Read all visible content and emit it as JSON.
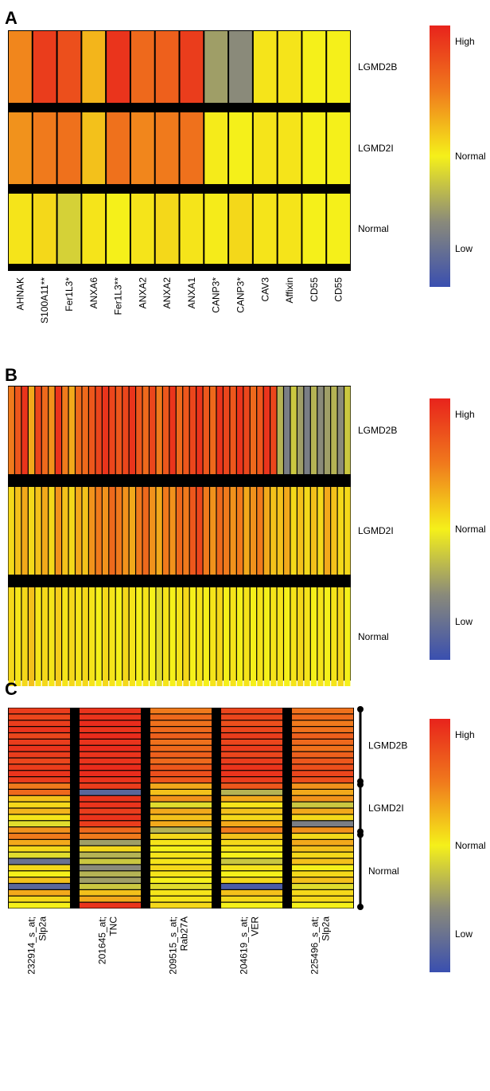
{
  "chart_data": [
    {
      "type": "heatmap",
      "panel_label": "A",
      "rows": [
        "LGMD2B",
        "LGMD2I",
        "Normal"
      ],
      "columns": [
        "AHNAK",
        "S100A11**",
        "Fer1L3*",
        "ANXA6",
        "Fer1L3**",
        "ANXA2",
        "ANXA2",
        "ANXA1",
        "CANP3*",
        "CANP3*",
        "CAV3",
        "Affixin",
        "CD55",
        "CD55"
      ],
      "values": [
        [
          0.45,
          0.85,
          0.75,
          0.25,
          0.9,
          0.6,
          0.65,
          0.85,
          -0.4,
          -0.5,
          0.05,
          0.05,
          0.0,
          0.0
        ],
        [
          0.4,
          0.5,
          0.55,
          0.2,
          0.55,
          0.45,
          0.5,
          0.55,
          0.02,
          0.0,
          0.05,
          0.05,
          0.0,
          0.0
        ],
        [
          0.05,
          0.1,
          -0.15,
          0.05,
          0.0,
          0.05,
          0.1,
          0.05,
          0.02,
          0.1,
          0.05,
          0.05,
          0.0,
          0.0
        ]
      ],
      "legend": {
        "high": "High",
        "normal": "Normal",
        "low": "Low"
      }
    },
    {
      "type": "heatmap",
      "panel_label": "B",
      "rows": [
        "LGMD2B",
        "LGMD2I",
        "Normal"
      ],
      "columns": [],
      "values": [
        [
          0.5,
          0.7,
          0.9,
          0.3,
          0.8,
          0.6,
          0.4,
          0.9,
          0.5,
          0.3,
          0.6,
          0.6,
          0.7,
          0.8,
          0.9,
          0.8,
          0.7,
          0.8,
          0.9,
          0.7,
          0.6,
          0.8,
          0.5,
          0.7,
          0.9,
          0.6,
          0.7,
          0.8,
          0.9,
          0.7,
          0.6,
          0.9,
          0.8,
          0.7,
          0.9,
          0.8,
          0.6,
          0.7,
          0.9,
          0.8,
          -0.3,
          -0.6,
          -0.2,
          -0.4,
          -0.6,
          -0.3,
          -0.5,
          -0.4,
          -0.3,
          -0.5,
          -0.2
        ],
        [
          0.1,
          0.2,
          0.3,
          0.1,
          0.2,
          0.3,
          0.1,
          0.4,
          0.2,
          0.1,
          0.3,
          0.2,
          0.4,
          0.5,
          0.4,
          0.6,
          0.5,
          0.4,
          0.3,
          0.5,
          0.6,
          0.4,
          0.3,
          0.5,
          0.4,
          0.6,
          0.5,
          0.7,
          0.8,
          0.5,
          0.4,
          0.6,
          0.5,
          0.4,
          0.5,
          0.3,
          0.4,
          0.5,
          0.3,
          0.2,
          0.2,
          0.3,
          0.1,
          0.2,
          0.1,
          0.2,
          0.1,
          0.3,
          0.2,
          0.1,
          0.1
        ],
        [
          0.1,
          0.05,
          0.1,
          0.2,
          0.05,
          0.1,
          0.05,
          0.15,
          0.05,
          0.1,
          0.05,
          0.1,
          0.05,
          0.0,
          0.1,
          0.05,
          0.0,
          0.1,
          0.05,
          0.0,
          0.05,
          0.0,
          -0.1,
          0.05,
          0.0,
          0.05,
          0.1,
          0.0,
          0.05,
          0.0,
          0.05,
          0.1,
          0.0,
          0.05,
          0.0,
          0.05,
          0.0,
          0.05,
          0.0,
          0.05,
          0.05,
          0.0,
          0.05,
          0.1,
          0.05,
          0.0,
          0.05,
          0.0,
          0.05,
          0.1,
          0.0
        ]
      ],
      "legend": {
        "high": "High",
        "normal": "Normal",
        "low": "Low"
      }
    },
    {
      "type": "heatmap",
      "panel_label": "C",
      "columns": [
        {
          "probe": "232914_s_at;",
          "gene": "Slp2a"
        },
        {
          "probe": "201645_at;",
          "gene": "TNC"
        },
        {
          "probe": "209515_s_at;",
          "gene": "Rab27A"
        },
        {
          "probe": "204619_s_at;",
          "gene": "VER"
        },
        {
          "probe": "225496_s_at;",
          "gene": "Slp2a"
        }
      ],
      "groups": [
        {
          "label": "LGMD2B",
          "rows": 12
        },
        {
          "label": "LGMD2I",
          "rows": 8
        },
        {
          "label": "Normal",
          "rows": 12
        }
      ],
      "values": [
        [
          0.85,
          0.9,
          0.5,
          0.8,
          0.55
        ],
        [
          0.8,
          0.9,
          0.6,
          0.8,
          0.6
        ],
        [
          0.85,
          0.95,
          0.55,
          0.75,
          0.5
        ],
        [
          0.9,
          0.9,
          0.6,
          0.8,
          0.55
        ],
        [
          0.8,
          0.95,
          0.65,
          0.85,
          0.65
        ],
        [
          0.85,
          0.9,
          0.55,
          0.8,
          0.6
        ],
        [
          0.9,
          0.95,
          0.6,
          0.85,
          0.55
        ],
        [
          0.85,
          0.9,
          0.65,
          0.8,
          0.65
        ],
        [
          0.8,
          0.9,
          0.6,
          0.85,
          0.7
        ],
        [
          0.85,
          0.95,
          0.7,
          0.9,
          0.75
        ],
        [
          0.9,
          0.95,
          0.75,
          0.9,
          0.8
        ],
        [
          0.85,
          0.9,
          0.7,
          0.85,
          0.75
        ],
        [
          0.5,
          0.85,
          0.3,
          0.7,
          0.4
        ],
        [
          0.6,
          -0.8,
          0.2,
          -0.3,
          0.3
        ],
        [
          0.2,
          0.9,
          0.4,
          0.3,
          0.4
        ],
        [
          0.1,
          0.9,
          -0.1,
          0.05,
          -0.2
        ],
        [
          0.25,
          0.85,
          0.3,
          0.2,
          0.3
        ],
        [
          0.05,
          0.9,
          0.2,
          0.1,
          0.1
        ],
        [
          -0.1,
          0.85,
          0.3,
          0.3,
          -0.6
        ],
        [
          0.4,
          0.6,
          -0.3,
          0.5,
          0.4
        ],
        [
          0.5,
          0.5,
          0.1,
          0.2,
          0.1
        ],
        [
          0.3,
          -0.4,
          0.05,
          0.1,
          0.3
        ],
        [
          0.1,
          0.1,
          0.0,
          0.05,
          0.2
        ],
        [
          -0.1,
          -0.3,
          0.05,
          0.0,
          0.1
        ],
        [
          -0.7,
          -0.2,
          0.05,
          -0.2,
          0.2
        ],
        [
          0.1,
          -0.5,
          0.1,
          0.05,
          0.0
        ],
        [
          0.0,
          -0.3,
          0.05,
          0.0,
          0.1
        ],
        [
          0.2,
          -0.4,
          0.0,
          0.1,
          0.2
        ],
        [
          -0.8,
          -0.2,
          -0.1,
          -0.9,
          -0.1
        ],
        [
          0.3,
          0.2,
          0.05,
          0.2,
          0.1
        ],
        [
          0.1,
          0.3,
          0.05,
          0.1,
          0.1
        ],
        [
          0.0,
          0.9,
          0.1,
          0.0,
          0.0
        ]
      ],
      "legend": {
        "high": "High",
        "normal": "Normal",
        "low": "Low"
      }
    }
  ]
}
